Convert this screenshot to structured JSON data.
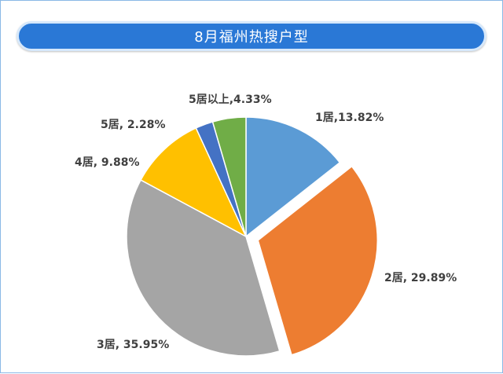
{
  "title": "8月福州热搜户型",
  "chart_data": {
    "type": "pie",
    "categories": [
      "1居",
      "2居",
      "3居",
      "4居",
      "5居",
      "5居以上"
    ],
    "values": [
      13.82,
      29.89,
      35.95,
      9.88,
      2.28,
      4.33
    ],
    "labels": [
      "1居,13.82%",
      "2居, 29.89%",
      "3居, 35.95%",
      "4居, 9.88%",
      "5居, 2.28%",
      "5居以上,4.33%"
    ],
    "colors": [
      "#5b9bd5",
      "#ed7d31",
      "#a5a5a5",
      "#ffc000",
      "#4472c4",
      "#70ad47"
    ],
    "exploded": "2居",
    "legend": "none"
  }
}
